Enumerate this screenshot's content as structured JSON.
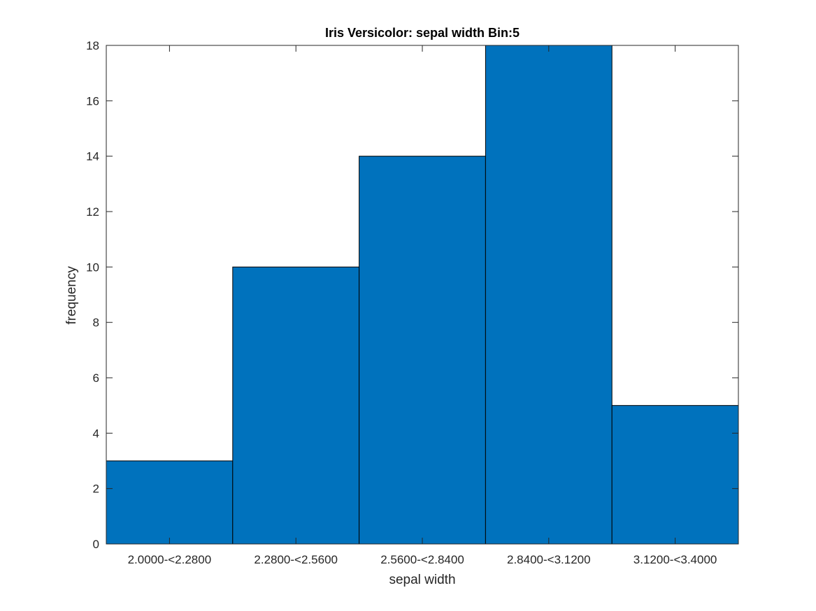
{
  "chart_data": {
    "type": "bar",
    "title": "Iris Versicolor: sepal width Bin:5",
    "xlabel": "sepal width",
    "ylabel": "frequency",
    "categories": [
      "2.0000-<2.2800",
      "2.2800-<2.5600",
      "2.5600-<2.8400",
      "2.8400-<3.1200",
      "3.1200-<3.4000"
    ],
    "values": [
      3,
      10,
      14,
      18,
      5
    ],
    "ylim": [
      0,
      18
    ],
    "yticks": [
      0,
      2,
      4,
      6,
      8,
      10,
      12,
      14,
      16,
      18
    ],
    "grid": false,
    "bar_color": "#0072BD",
    "edge_color": "#000000"
  }
}
